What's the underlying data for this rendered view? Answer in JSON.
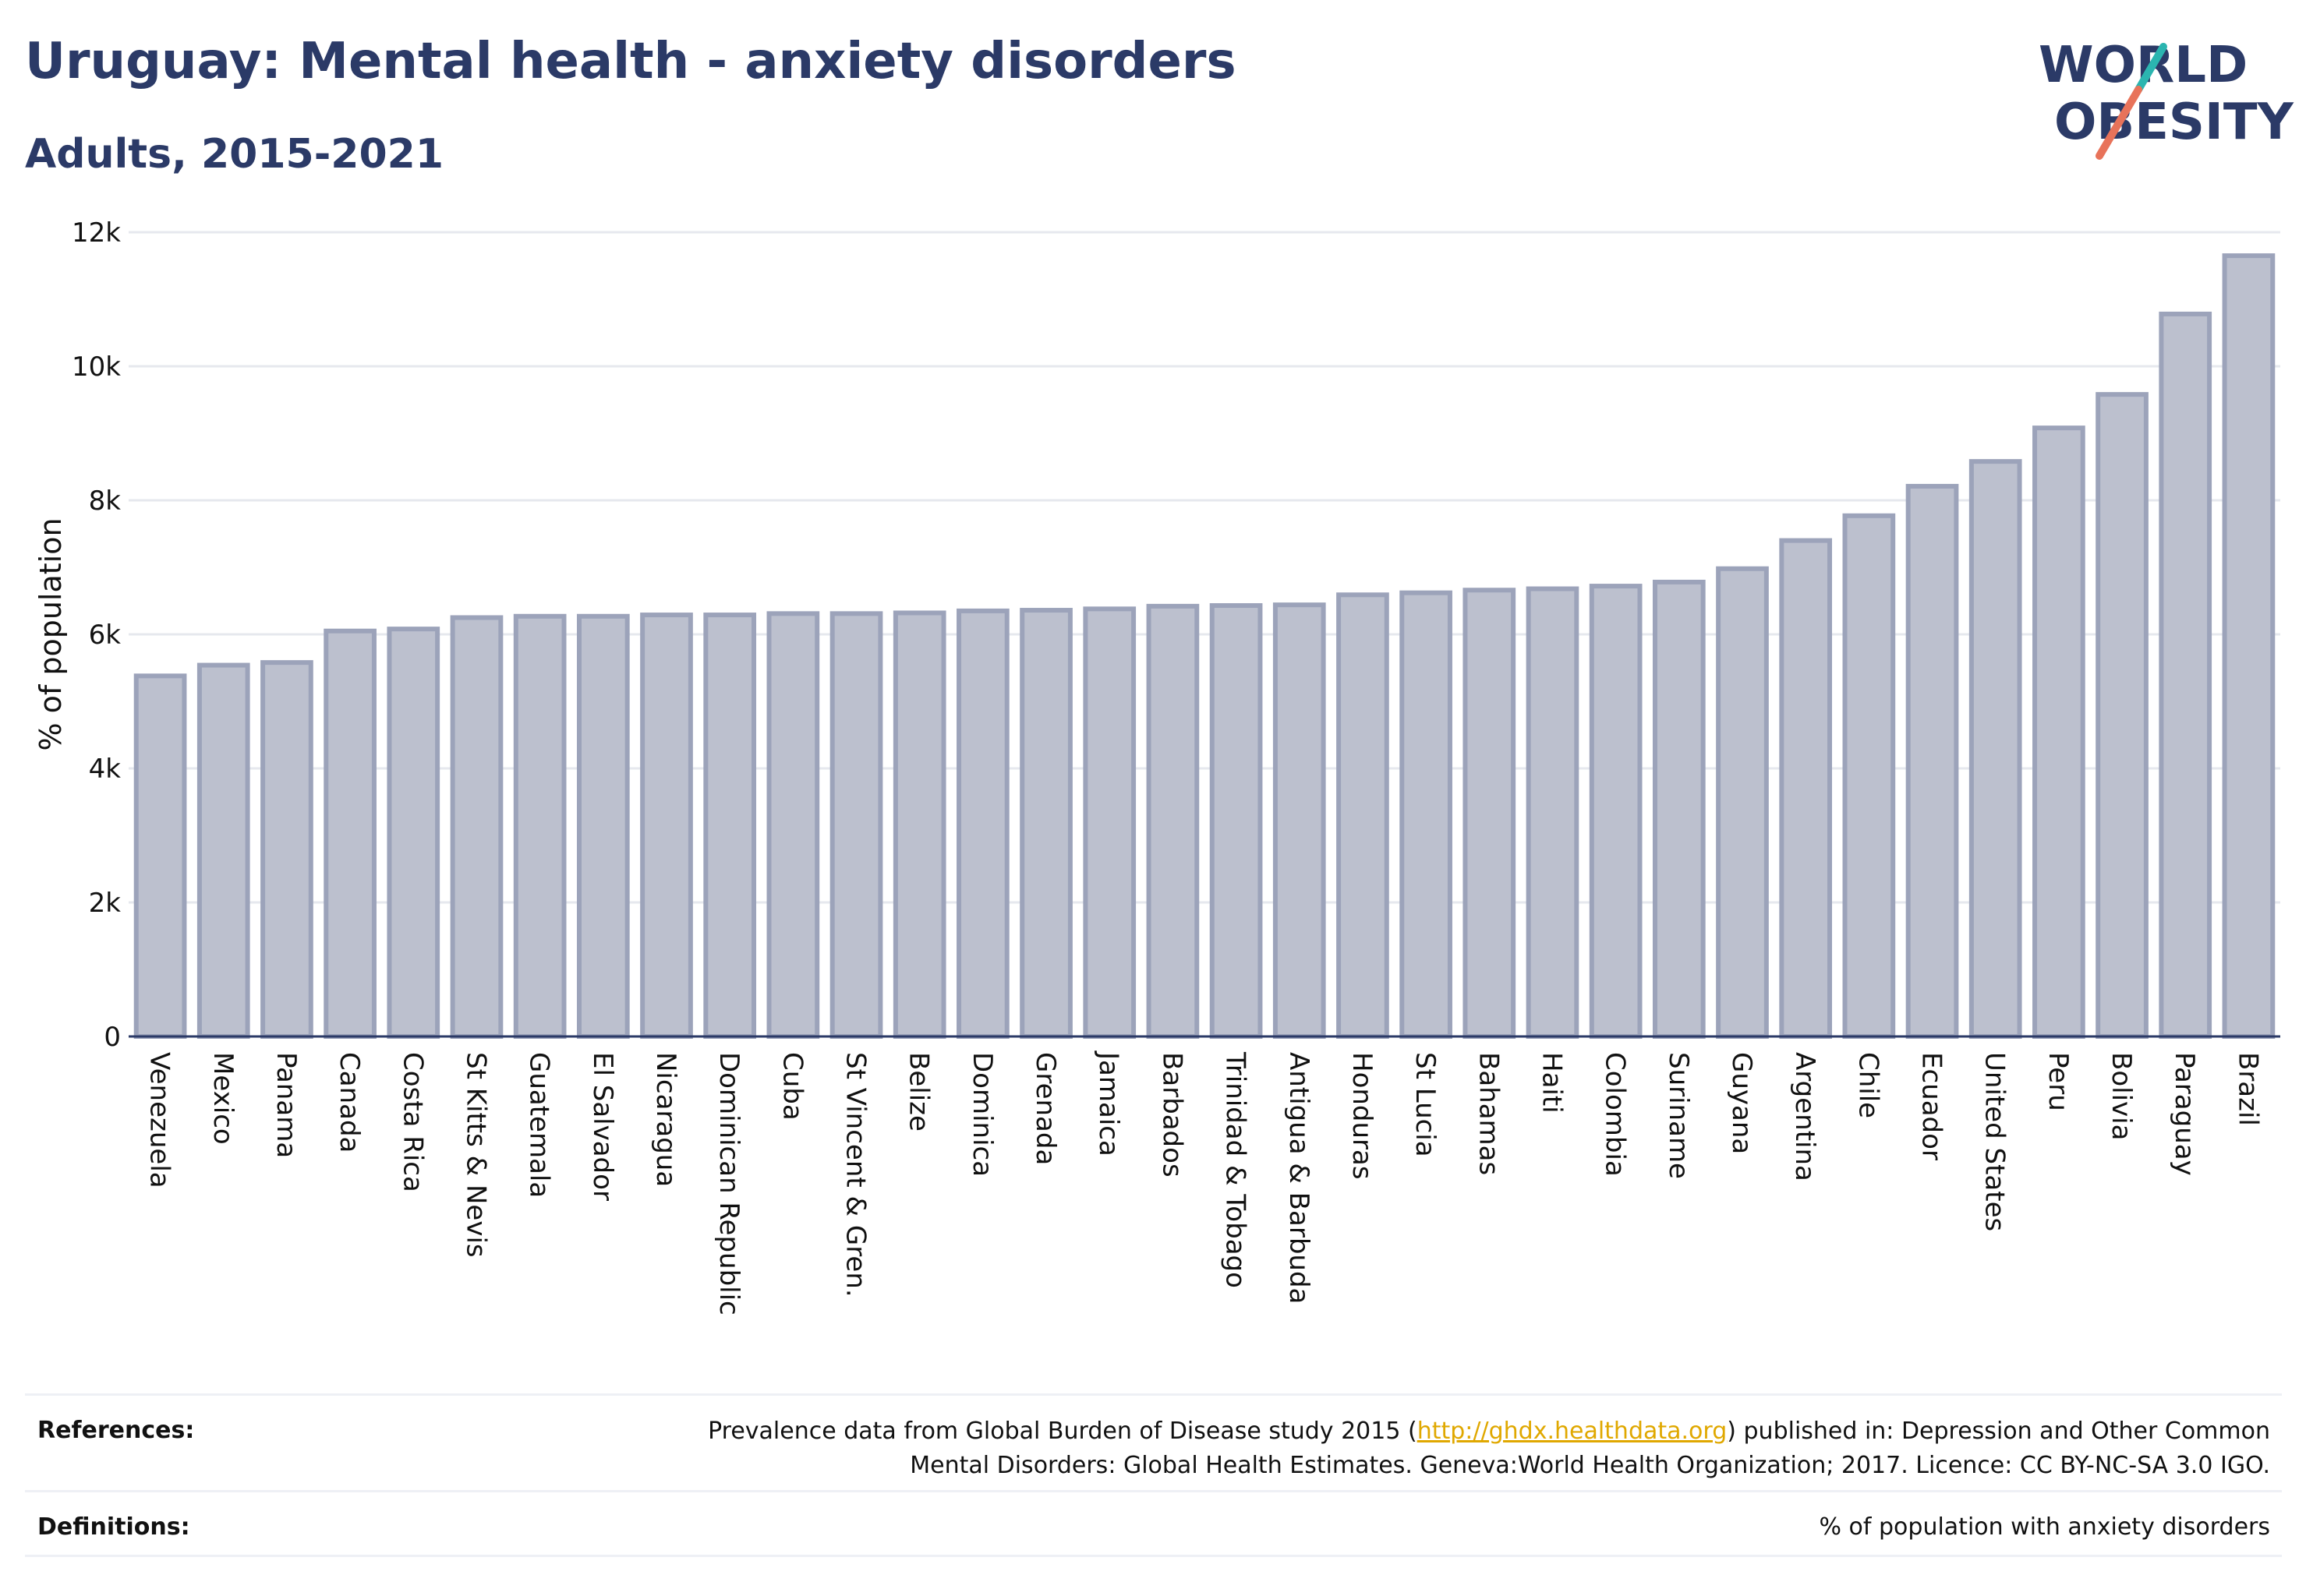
{
  "header": {
    "title": "Uruguay: Mental health - anxiety disorders",
    "subtitle": "Adults, 2015-2021"
  },
  "logo": {
    "line1": "WORLD",
    "line2": "OBESITY",
    "accent_teal": "#2bb5b0",
    "accent_coral": "#e8735a",
    "text_color": "#2b3a67"
  },
  "footer": {
    "references_label": "References:",
    "references_text_before": "Prevalence data from Global Burden of Disease study 2015 (",
    "references_link": "http://ghdx.healthdata.org",
    "references_text_after": ") published in: Depression and Other Common",
    "references_text_line2": "Mental Disorders: Global Health Estimates. Geneva:World Health Organization; 2017. Licence: CC BY-NC-SA 3.0 IGO.",
    "definitions_label": "Definitions:",
    "definitions_text": "% of population with anxiety disorders"
  },
  "chart_data": {
    "type": "bar",
    "title": "Uruguay: Mental health - anxiety disorders",
    "subtitle": "Adults, 2015-2021",
    "ylabel": "% of population",
    "xlabel": "",
    "ylim": [
      0,
      12000
    ],
    "yticks": [
      0,
      2000,
      4000,
      6000,
      8000,
      10000,
      12000
    ],
    "ytick_labels": [
      "0",
      "2k",
      "4k",
      "6k",
      "8k",
      "10k",
      "12k"
    ],
    "grid": true,
    "bar_fill": "#bcc0ce",
    "bar_stroke": "#9ca3ba",
    "categories": [
      "Venezuela",
      "Mexico",
      "Panama",
      "Canada",
      "Costa Rica",
      "St Kitts & Nevis",
      "Guatemala",
      "El Salvador",
      "Nicaragua",
      "Dominican Republic",
      "Cuba",
      "St Vincent & Gren.",
      "Belize",
      "Dominica",
      "Grenada",
      "Jamaica",
      "Barbados",
      "Trinidad & Tobago",
      "Antigua & Barbuda",
      "Honduras",
      "St Lucia",
      "Bahamas",
      "Haiti",
      "Colombia",
      "Suriname",
      "Guyana",
      "Argentina",
      "Chile",
      "Ecuador",
      "United States",
      "Peru",
      "Bolivia",
      "Paraguay",
      "Brazil"
    ],
    "values": [
      5380,
      5540,
      5580,
      6050,
      6080,
      6250,
      6270,
      6270,
      6290,
      6290,
      6310,
      6310,
      6320,
      6350,
      6360,
      6380,
      6420,
      6430,
      6440,
      6590,
      6620,
      6660,
      6680,
      6720,
      6780,
      6980,
      7400,
      7770,
      8210,
      8580,
      9080,
      9580,
      10780,
      11650
    ]
  }
}
